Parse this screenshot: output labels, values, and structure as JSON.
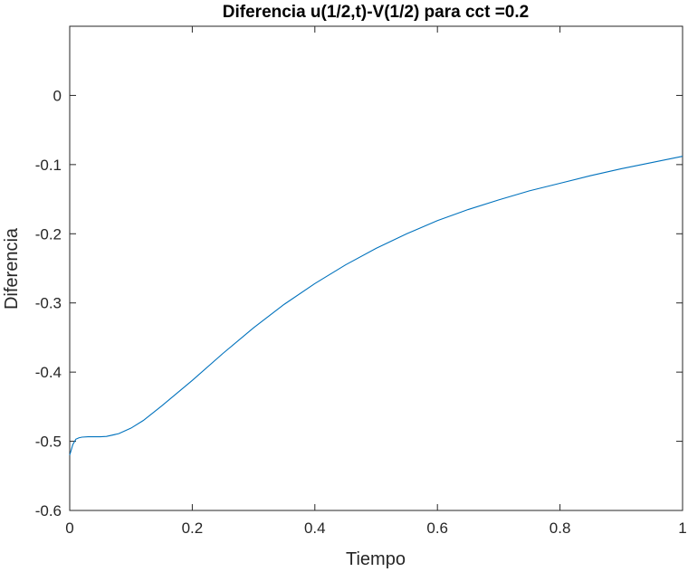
{
  "chart_data": {
    "type": "line",
    "title": "Diferencia u(1/2,t)-V(1/2) para cct =0.2",
    "xlabel": "Tiempo",
    "ylabel": "Diferencia",
    "xlim": [
      0,
      1
    ],
    "ylim": [
      -0.6,
      0.1
    ],
    "xticks": [
      0,
      0.2,
      0.4,
      0.6,
      0.8,
      1
    ],
    "xtick_labels": [
      "0",
      "0.2",
      "0.4",
      "0.6",
      "0.8",
      "1"
    ],
    "yticks": [
      -0.6,
      -0.5,
      -0.4,
      -0.3,
      -0.2,
      -0.1,
      0
    ],
    "ytick_labels": [
      "-0.6",
      "-0.5",
      "-0.4",
      "-0.3",
      "-0.2",
      "-0.1",
      "0"
    ],
    "grid": false,
    "line_color": "#0072BD",
    "series": [
      {
        "x": [
          0,
          0.005,
          0.01,
          0.015,
          0.02,
          0.03,
          0.04,
          0.05,
          0.06,
          0.08,
          0.1,
          0.12,
          0.15,
          0.2,
          0.25,
          0.3,
          0.35,
          0.4,
          0.45,
          0.5,
          0.55,
          0.6,
          0.65,
          0.7,
          0.75,
          0.8,
          0.85,
          0.9,
          0.95,
          1.0
        ],
        "y": [
          -0.52,
          -0.505,
          -0.497,
          -0.495,
          -0.494,
          -0.4935,
          -0.4935,
          -0.4935,
          -0.493,
          -0.489,
          -0.481,
          -0.47,
          -0.449,
          -0.412,
          -0.373,
          -0.336,
          -0.302,
          -0.272,
          -0.245,
          -0.221,
          -0.2,
          -0.181,
          -0.165,
          -0.151,
          -0.138,
          -0.127,
          -0.116,
          -0.106,
          -0.097,
          -0.088
        ]
      }
    ]
  }
}
